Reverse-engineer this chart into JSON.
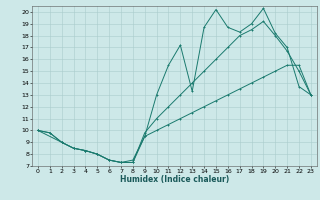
{
  "xlabel": "Humidex (Indice chaleur)",
  "xlim": [
    -0.5,
    23.5
  ],
  "ylim": [
    7,
    20.5
  ],
  "yticks": [
    7,
    8,
    9,
    10,
    11,
    12,
    13,
    14,
    15,
    16,
    17,
    18,
    19,
    20
  ],
  "xticks": [
    0,
    1,
    2,
    3,
    4,
    5,
    6,
    7,
    8,
    9,
    10,
    11,
    12,
    13,
    14,
    15,
    16,
    17,
    18,
    19,
    20,
    21,
    22,
    23
  ],
  "bg_color": "#cde8e8",
  "line_color": "#1a7a6e",
  "grid_color": "#aacccc",
  "line_min_x": [
    0,
    1,
    2,
    3,
    4,
    5,
    6,
    7,
    8,
    9,
    10,
    11,
    12,
    13,
    14,
    15,
    16,
    17,
    18,
    19,
    20,
    21,
    22,
    23
  ],
  "line_min_y": [
    10.0,
    9.8,
    9.0,
    8.5,
    8.3,
    8.0,
    7.5,
    7.3,
    7.3,
    9.5,
    10.0,
    10.5,
    11.0,
    11.5,
    12.0,
    12.5,
    13.0,
    13.5,
    14.0,
    14.5,
    15.0,
    15.5,
    15.5,
    13.0
  ],
  "line_max_x": [
    0,
    1,
    2,
    3,
    4,
    5,
    6,
    7,
    8,
    9,
    10,
    11,
    12,
    13,
    14,
    15,
    16,
    17,
    18,
    19,
    20,
    21,
    22,
    23
  ],
  "line_max_y": [
    10.0,
    9.8,
    9.0,
    8.5,
    8.3,
    8.0,
    7.5,
    7.3,
    7.5,
    9.5,
    13.0,
    15.5,
    17.2,
    13.3,
    18.7,
    20.2,
    18.7,
    18.3,
    19.0,
    20.3,
    18.2,
    17.0,
    13.7,
    13.0
  ],
  "line_mean_x": [
    0,
    2,
    3,
    4,
    5,
    6,
    7,
    8,
    9,
    10,
    11,
    12,
    13,
    14,
    15,
    16,
    17,
    18,
    19,
    20,
    21,
    22,
    23
  ],
  "line_mean_y": [
    10.0,
    9.0,
    8.5,
    8.3,
    8.0,
    7.5,
    7.3,
    7.3,
    9.8,
    11.0,
    12.0,
    13.0,
    14.0,
    15.0,
    16.0,
    17.0,
    18.0,
    18.5,
    19.2,
    18.0,
    16.7,
    15.0,
    13.0
  ]
}
